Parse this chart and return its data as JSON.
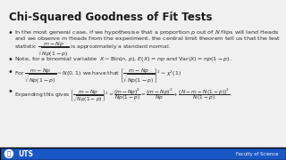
{
  "title": "Chi-Squared Goodness of Fit Tests",
  "bg_color": "#f0f0f0",
  "title_color": "#1a1a1a",
  "text_color": "#2a2a2a",
  "uts_bar_color": "#1a56c4",
  "footer_text": "Faculty of Science",
  "b1l1": "In the most general case, if we hypothesise that a proportion $p$ out of $N$ flips will land Heads",
  "b1l2": "and we observe $m$ Heads from the experiment, the central limit theorem tell us that the test",
  "b2": "Note, for a binomial variable  $X \\sim \\mathrm{Bin}(n,p)$, $E(X) = np$ and $\\mathrm{Var}(X) = np(1-p)$."
}
